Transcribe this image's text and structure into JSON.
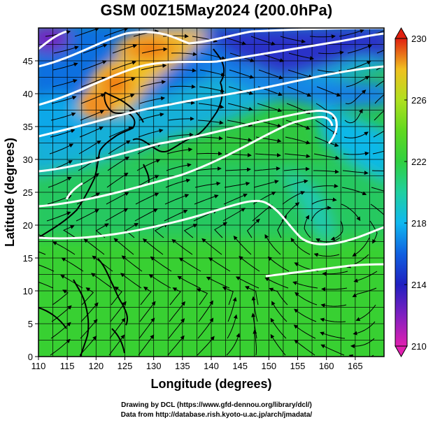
{
  "title": "GSM 00Z15May2024 (200.0hPa)",
  "x_axis": {
    "label": "Longitude (degrees)",
    "ticks": [
      "110",
      "115",
      "120",
      "125",
      "130",
      "135",
      "140",
      "145",
      "150",
      "155",
      "160",
      "165"
    ],
    "range": [
      110,
      170
    ]
  },
  "y_axis": {
    "label": "Latitude  (degrees)",
    "ticks": [
      "0",
      "5",
      "10",
      "15",
      "20",
      "25",
      "30",
      "35",
      "40",
      "45"
    ],
    "range": [
      0,
      50
    ]
  },
  "colorbar": {
    "ticks": [
      "210",
      "214",
      "218",
      "222",
      "226",
      "230"
    ],
    "range": [
      210,
      230
    ],
    "colors": [
      "#e020b0",
      "#8020c0",
      "#2020c0",
      "#1060e0",
      "#10b8f0",
      "#20d0a0",
      "#30d040",
      "#60d820",
      "#b0e020",
      "#f0c020",
      "#f07010",
      "#e02010"
    ]
  },
  "footer": {
    "line1": "Drawing by DCL (https://www.gfd-dennou.org/library/dcl/)",
    "line2": "Data from http://database.rish.kyoto-u.ac.jp/arch/jmadata/"
  }
}
